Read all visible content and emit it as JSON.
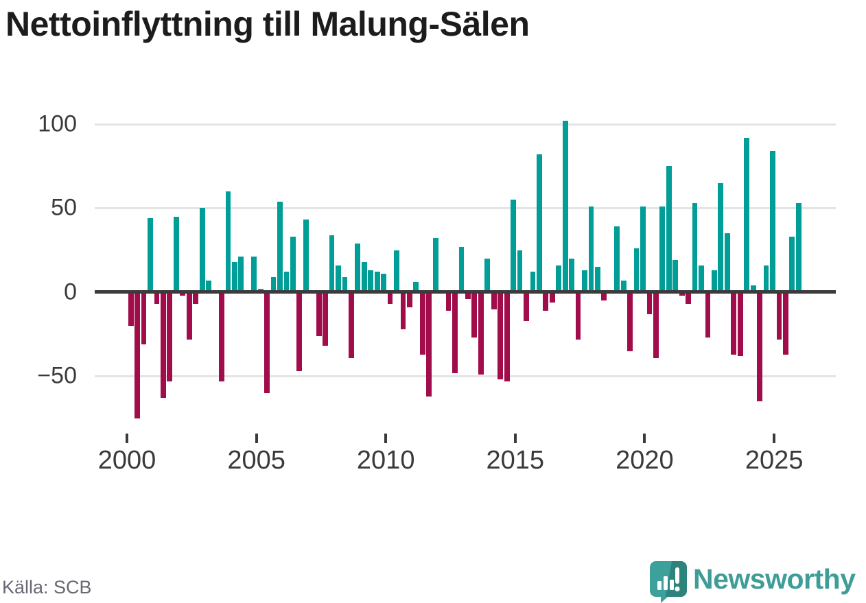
{
  "title": "Nettoinflyttning till Malung-Sälen",
  "source": "Källa: SCB",
  "brand": {
    "name": "Newsworthy"
  },
  "y_axis": {
    "tick_labels": [
      "100",
      "50",
      "0",
      "−50"
    ],
    "tick_values": [
      100,
      50,
      0,
      -50
    ]
  },
  "x_axis": {
    "tick_labels": [
      "2000",
      "2005",
      "2010",
      "2015",
      "2020",
      "2025"
    ]
  },
  "colors": {
    "positive": "#009e97",
    "negative": "#a00d4a",
    "grid": "#e4e4e4",
    "zero_line": "#3b3b3b",
    "axis_text": "#3a3a3a",
    "title_text": "#1c1c1c",
    "source_text": "#686874",
    "brand_teal": "#3f9d98"
  },
  "chart_data": {
    "type": "bar",
    "title": "Nettoinflyttning till Malung-Sälen",
    "x_unit": "quarter",
    "start": "2000 Q1",
    "end": "2025 Q4",
    "ylim": [
      -80,
      105
    ],
    "grid": "horizontal",
    "y_ticks": [
      100,
      50,
      0,
      -50
    ],
    "x_ticks": [
      2000,
      2005,
      2010,
      2015,
      2020,
      2025
    ],
    "years": [
      {
        "year": 2000,
        "quarters": [
          -20,
          -75,
          -31,
          44
        ]
      },
      {
        "year": 2001,
        "quarters": [
          -7,
          -63,
          -53,
          45
        ]
      },
      {
        "year": 2002,
        "quarters": [
          -2,
          -28,
          -7,
          50
        ]
      },
      {
        "year": 2003,
        "quarters": [
          7,
          0,
          -53,
          60
        ]
      },
      {
        "year": 2004,
        "quarters": [
          18,
          21,
          0,
          21
        ]
      },
      {
        "year": 2005,
        "quarters": [
          2,
          -60,
          9,
          54
        ]
      },
      {
        "year": 2006,
        "quarters": [
          12,
          33,
          -47,
          43
        ]
      },
      {
        "year": 2007,
        "quarters": [
          0,
          -26,
          -32,
          34
        ]
      },
      {
        "year": 2008,
        "quarters": [
          16,
          9,
          -39,
          29
        ]
      },
      {
        "year": 2009,
        "quarters": [
          18,
          13,
          12,
          11
        ]
      },
      {
        "year": 2010,
        "quarters": [
          -7,
          25,
          -22,
          -9
        ]
      },
      {
        "year": 2011,
        "quarters": [
          6,
          -37,
          -62,
          32
        ]
      },
      {
        "year": 2012,
        "quarters": [
          0,
          -11,
          -48,
          27
        ]
      },
      {
        "year": 2013,
        "quarters": [
          -4,
          -27,
          -49,
          20
        ]
      },
      {
        "year": 2014,
        "quarters": [
          -10,
          -52,
          -53,
          55
        ]
      },
      {
        "year": 2015,
        "quarters": [
          25,
          -17,
          12,
          82
        ]
      },
      {
        "year": 2016,
        "quarters": [
          -11,
          -6,
          16,
          102
        ]
      },
      {
        "year": 2017,
        "quarters": [
          20,
          -28,
          13,
          51
        ]
      },
      {
        "year": 2018,
        "quarters": [
          15,
          -5,
          0,
          39
        ]
      },
      {
        "year": 2019,
        "quarters": [
          7,
          -35,
          26,
          51
        ]
      },
      {
        "year": 2020,
        "quarters": [
          -13,
          -39,
          51,
          75
        ]
      },
      {
        "year": 2021,
        "quarters": [
          19,
          -2,
          -7,
          53
        ]
      },
      {
        "year": 2022,
        "quarters": [
          16,
          -27,
          13,
          65
        ]
      },
      {
        "year": 2023,
        "quarters": [
          35,
          -37,
          -38,
          92
        ]
      },
      {
        "year": 2024,
        "quarters": [
          4,
          -65,
          16,
          84
        ]
      },
      {
        "year": 2025,
        "quarters": [
          -28,
          -37,
          33,
          53
        ]
      }
    ]
  }
}
